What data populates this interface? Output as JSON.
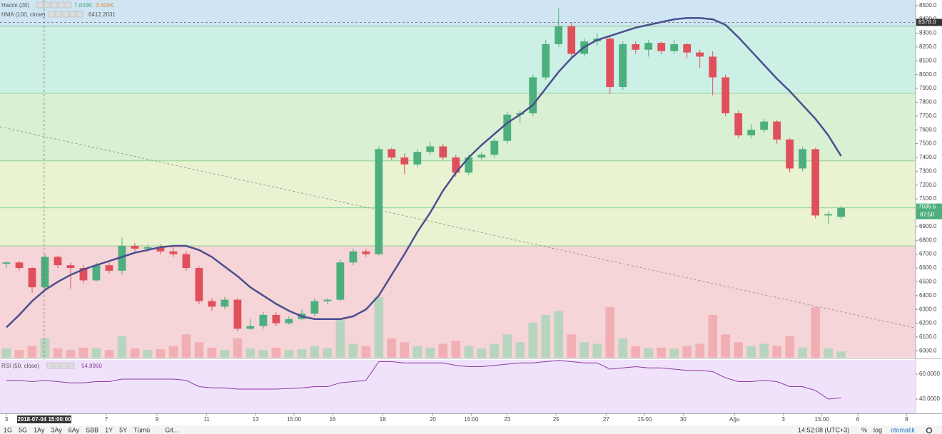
{
  "chart_data": {
    "type": "candlestick",
    "xlim": [
      -0.5,
      70.8
    ],
    "ylim": [
      5950,
      8540
    ],
    "yticks": [
      {
        "value": 6000,
        "label": "6000.0"
      },
      {
        "value": 6100,
        "label": "6100.0"
      },
      {
        "value": 6200,
        "label": "6200.0"
      },
      {
        "value": 6300,
        "label": "6300.0"
      },
      {
        "value": 6400,
        "label": "6400.0"
      },
      {
        "value": 6500,
        "label": "6500.0"
      },
      {
        "value": 6600,
        "label": "6600.0"
      },
      {
        "value": 6700,
        "label": "6700.0"
      },
      {
        "value": 6800,
        "label": "6800.0"
      },
      {
        "value": 6900,
        "label": "6900.0"
      },
      {
        "value": 7000,
        "label": "7000.0"
      },
      {
        "value": 7100,
        "label": "7100.0"
      },
      {
        "value": 7200,
        "label": "7200.0"
      },
      {
        "value": 7300,
        "label": "7300.0"
      },
      {
        "value": 7400,
        "label": "7400.0"
      },
      {
        "value": 7500,
        "label": "7500.0"
      },
      {
        "value": 7600,
        "label": "7600.0"
      },
      {
        "value": 7700,
        "label": "7700.0"
      },
      {
        "value": 7800,
        "label": "7800.0"
      },
      {
        "value": 7900,
        "label": "7900.0"
      },
      {
        "value": 8000,
        "label": "8000.0"
      },
      {
        "value": 8100,
        "label": "8100.0"
      },
      {
        "value": 8200,
        "label": "8200.0"
      },
      {
        "value": 8300,
        "label": "8300.0"
      },
      {
        "value": 8400,
        "label": "8400.0"
      },
      {
        "value": 8500,
        "label": "8500.0"
      }
    ],
    "xticks": [
      {
        "value": 0,
        "label": "3"
      },
      {
        "value": 7.78,
        "label": "7"
      },
      {
        "value": 11.72,
        "label": "9"
      },
      {
        "value": 15.6,
        "label": "11"
      },
      {
        "value": 19.4,
        "label": "13"
      },
      {
        "value": 22.4,
        "label": "15:00"
      },
      {
        "value": 25.4,
        "label": "16"
      },
      {
        "value": 29.3,
        "label": "18"
      },
      {
        "value": 33.2,
        "label": "20"
      },
      {
        "value": 36.2,
        "label": "15:00"
      },
      {
        "value": 39,
        "label": "23"
      },
      {
        "value": 42.8,
        "label": "25"
      },
      {
        "value": 46.7,
        "label": "27"
      },
      {
        "value": 49.7,
        "label": "15:00"
      },
      {
        "value": 52.7,
        "label": "30"
      },
      {
        "value": 56.7,
        "label": "Ağu"
      },
      {
        "value": 60.5,
        "label": "3"
      },
      {
        "value": 63.5,
        "label": "15:00"
      },
      {
        "value": 66.3,
        "label": "6"
      },
      {
        "value": 70.1,
        "label": "8"
      }
    ],
    "zones": [
      {
        "from": 8350,
        "to": 8540,
        "color": "#cfe5f3"
      },
      {
        "from": 7865,
        "to": 8350,
        "color": "#cdf0e6"
      },
      {
        "from": 7375,
        "to": 7865,
        "color": "#d9f0d2"
      },
      {
        "from": 6760,
        "to": 7375,
        "color": "#e9f3d2"
      },
      {
        "from": 5950,
        "to": 6760,
        "color": "#f5d5d7"
      }
    ],
    "level_lines": [
      8350,
      7865,
      7375,
      7035.5,
      6760
    ],
    "up_color": "#4caf7d",
    "down_color": "#e0505c",
    "candles": {
      "open": [
        6630,
        6640,
        6600,
        6460,
        6680,
        6620,
        6600,
        6510,
        6620,
        6580,
        6760,
        6740,
        6750,
        6720,
        6700,
        6600,
        6360,
        6320,
        6370,
        6160,
        6180,
        6260,
        6200,
        6230,
        6270,
        6360,
        6370,
        6640,
        6720,
        6700,
        7460,
        7400,
        7350,
        7440,
        7480,
        7400,
        7290,
        7400,
        7420,
        7520,
        7710,
        7720,
        7980,
        8220,
        8350,
        8150,
        8240,
        8260,
        7910,
        8220,
        8180,
        8230,
        8170,
        8220,
        8160,
        8130,
        7980,
        7720,
        7560,
        7600,
        7660,
        7530,
        7320,
        7460,
        6980,
        6970
      ],
      "high": [
        6650,
        6650,
        6610,
        6700,
        6690,
        6640,
        6620,
        6640,
        6640,
        6820,
        6780,
        6770,
        6770,
        6750,
        6720,
        6610,
        6380,
        6390,
        6380,
        6230,
        6280,
        6280,
        6250,
        6300,
        6380,
        6380,
        6660,
        6740,
        6740,
        7480,
        7470,
        7430,
        7460,
        7510,
        7500,
        7420,
        7420,
        7440,
        7540,
        7730,
        7740,
        8000,
        8250,
        8480,
        8380,
        8260,
        8300,
        8280,
        8240,
        8240,
        8250,
        8240,
        8250,
        8230,
        8180,
        8170,
        8000,
        7740,
        7640,
        7680,
        7670,
        7540,
        7480,
        7470,
        7010,
        7050
      ],
      "low": [
        6600,
        6580,
        6420,
        6440,
        6600,
        6450,
        6490,
        6500,
        6560,
        6550,
        6720,
        6720,
        6700,
        6680,
        6580,
        6340,
        6290,
        6300,
        6140,
        6150,
        6160,
        6180,
        6190,
        6220,
        6250,
        6340,
        6360,
        6620,
        6680,
        6690,
        7380,
        7280,
        7330,
        7420,
        7380,
        7260,
        7270,
        7380,
        7400,
        7500,
        7650,
        7700,
        7960,
        8200,
        8120,
        8130,
        8210,
        7860,
        7890,
        8150,
        8130,
        8150,
        8150,
        8120,
        8050,
        7850,
        7700,
        7540,
        7540,
        7580,
        7500,
        7290,
        7300,
        6960,
        6920,
        6950
      ],
      "close": [
        6640,
        6600,
        6460,
        6680,
        6620,
        6600,
        6510,
        6620,
        6580,
        6760,
        6740,
        6750,
        6720,
        6700,
        6600,
        6360,
        6320,
        6370,
        6160,
        6180,
        6260,
        6200,
        6230,
        6270,
        6360,
        6370,
        6640,
        6720,
        6700,
        7460,
        7400,
        7350,
        7440,
        7480,
        7400,
        7290,
        7400,
        7420,
        7520,
        7710,
        7720,
        7980,
        8220,
        8350,
        8150,
        8240,
        8260,
        7910,
        8220,
        8180,
        8230,
        8170,
        8220,
        8160,
        8130,
        7980,
        7720,
        7560,
        7600,
        7660,
        7530,
        7320,
        7460,
        6980,
        6990,
        7035.5
      ]
    },
    "volume": {
      "title": "Hacim (20)",
      "legend_values": [
        "7.849K",
        "3.504K"
      ],
      "vlim": [
        0,
        11
      ],
      "values": [
        1.2,
        1.0,
        1.5,
        2.5,
        1.2,
        1.0,
        1.3,
        1.2,
        1.0,
        2.8,
        1.2,
        1.0,
        1.1,
        1.5,
        3.0,
        2.0,
        1.3,
        1.0,
        2.5,
        1.2,
        1.0,
        1.3,
        1.0,
        1.1,
        1.5,
        1.2,
        5.0,
        1.8,
        1.5,
        7.8,
        2.5,
        2.0,
        1.5,
        1.3,
        1.8,
        2.2,
        1.5,
        1.2,
        1.8,
        3.0,
        2.0,
        4.5,
        5.5,
        6.0,
        3.0,
        2.0,
        1.8,
        6.5,
        2.5,
        1.5,
        1.2,
        1.3,
        1.2,
        1.5,
        1.8,
        5.5,
        3.0,
        2.0,
        1.5,
        1.8,
        1.5,
        2.8,
        1.3,
        6.5,
        1.2,
        0.8
      ]
    },
    "hma": {
      "title": "HMA (100, close)",
      "legend_value": "6412.2031",
      "color": "#4b4e8e",
      "values": [
        6170,
        6260,
        6360,
        6440,
        6500,
        6550,
        6590,
        6620,
        6650,
        6680,
        6710,
        6730,
        6750,
        6760,
        6760,
        6730,
        6680,
        6610,
        6540,
        6460,
        6400,
        6340,
        6290,
        6250,
        6230,
        6230,
        6230,
        6250,
        6300,
        6400,
        6550,
        6700,
        6860,
        7000,
        7160,
        7290,
        7400,
        7490,
        7570,
        7650,
        7710,
        7780,
        7900,
        8020,
        8120,
        8200,
        8250,
        8280,
        8310,
        8340,
        8360,
        8380,
        8400,
        8410,
        8410,
        8400,
        8360,
        8270,
        8170,
        8070,
        7970,
        7880,
        7780,
        7680,
        7560,
        7410
      ]
    },
    "trendline": {
      "x": [
        -0.5,
        70.8
      ],
      "y": [
        7622,
        6165
      ],
      "color": "#8a8a8a"
    },
    "crosshair": {
      "x": 2.94,
      "x_label": "2018-07-04 15:00:00",
      "y": 8378,
      "y_label": "8378.0"
    },
    "last_price": {
      "value": 7035.5,
      "label": "7035.5",
      "countdown": "87:50"
    },
    "rsi": {
      "title": "RSI (50, close)",
      "legend_value": "54.8960",
      "color": "#8e3aa0",
      "ylim": [
        28.6,
        71.4
      ],
      "yticks": [
        {
          "value": 40,
          "label": "40.0000"
        },
        {
          "value": 60,
          "label": "60.0000"
        }
      ],
      "values": [
        55,
        55,
        54,
        55,
        54,
        53,
        53,
        54,
        54,
        56,
        56,
        56,
        56,
        56,
        55,
        50,
        49,
        49,
        48,
        48,
        48,
        48,
        48.5,
        49,
        50,
        50,
        53,
        54,
        55,
        70,
        70,
        69,
        69,
        69,
        69,
        67,
        66,
        66,
        67,
        68,
        69,
        69,
        70,
        71,
        70,
        69,
        69,
        64,
        65,
        66,
        65,
        65,
        64,
        63,
        63,
        62,
        57,
        54,
        54,
        55,
        54,
        50,
        50,
        47,
        40,
        41
      ]
    },
    "toolbar": {
      "ranges": [
        "1G",
        "5G",
        "1Ay",
        "3Ay",
        "6Ay",
        "SBB",
        "1Y",
        "5Y",
        "Tümü"
      ],
      "goto": "Git...",
      "time": "14:52:08 (UTC+3)",
      "percent": "%",
      "log": "log",
      "auto": "otomatik"
    }
  }
}
